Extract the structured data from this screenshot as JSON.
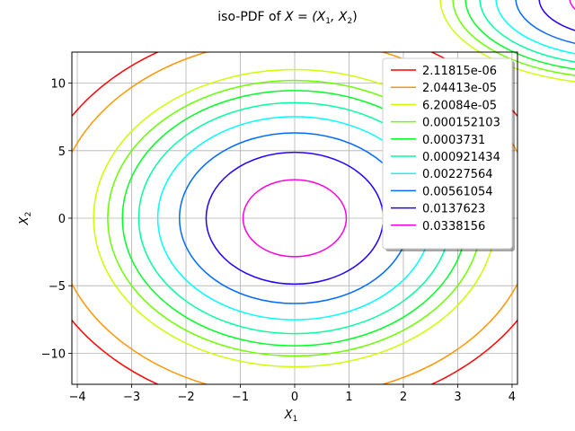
{
  "chart_data": {
    "type": "contour",
    "title_prefix": "iso-PDF of ",
    "title_math": "X = (X",
    "title_sub1": "1",
    "title_mid": ", X",
    "title_sub2": "2",
    "title_end": ")",
    "xlabel_main": "X",
    "xlabel_sub": "1",
    "ylabel_main": "X",
    "ylabel_sub": "2",
    "xlim": [
      -4.1,
      4.1
    ],
    "ylim": [
      -12.3,
      12.3
    ],
    "xticks": [
      -4,
      -3,
      -2,
      -1,
      0,
      1,
      2,
      3,
      4
    ],
    "yticks": [
      -10,
      -5,
      0,
      5,
      10
    ],
    "xtick_labels": [
      "−4",
      "−3",
      "−2",
      "−1",
      "0",
      "1",
      "2",
      "3",
      "4"
    ],
    "ytick_labels": [
      "−10",
      "−5",
      "0",
      "5",
      "10"
    ],
    "grid": true,
    "legend_position": "upper-right",
    "center": [
      0,
      0
    ],
    "levels": [
      {
        "label": "2.11815e-06",
        "color": "#ff0000",
        "a": 4.81,
        "b": 14.44
      },
      {
        "label": "2.04413e-05",
        "color": "#ff9600",
        "a": 4.41,
        "b": 13.23
      },
      {
        "label": "6.20084e-05",
        "color": "#cbff00",
        "a": 3.7,
        "b": 11.0
      },
      {
        "label": "0.000152103",
        "color": "#6bff00",
        "a": 3.44,
        "b": 10.2
      },
      {
        "label": "0.0003731",
        "color": "#00ff24",
        "a": 3.17,
        "b": 9.45
      },
      {
        "label": "0.000921434",
        "color": "#00ff9c",
        "a": 2.87,
        "b": 8.55
      },
      {
        "label": "0.00227564",
        "color": "#00ffff",
        "a": 2.52,
        "b": 7.52
      },
      {
        "label": "0.00561054",
        "color": "#006bff",
        "a": 2.12,
        "b": 6.32
      },
      {
        "label": "0.0137623",
        "color": "#2400ff",
        "a": 1.63,
        "b": 4.88
      },
      {
        "label": "0.0338156",
        "color": "#ff00e0",
        "a": 0.95,
        "b": 2.85
      }
    ]
  }
}
